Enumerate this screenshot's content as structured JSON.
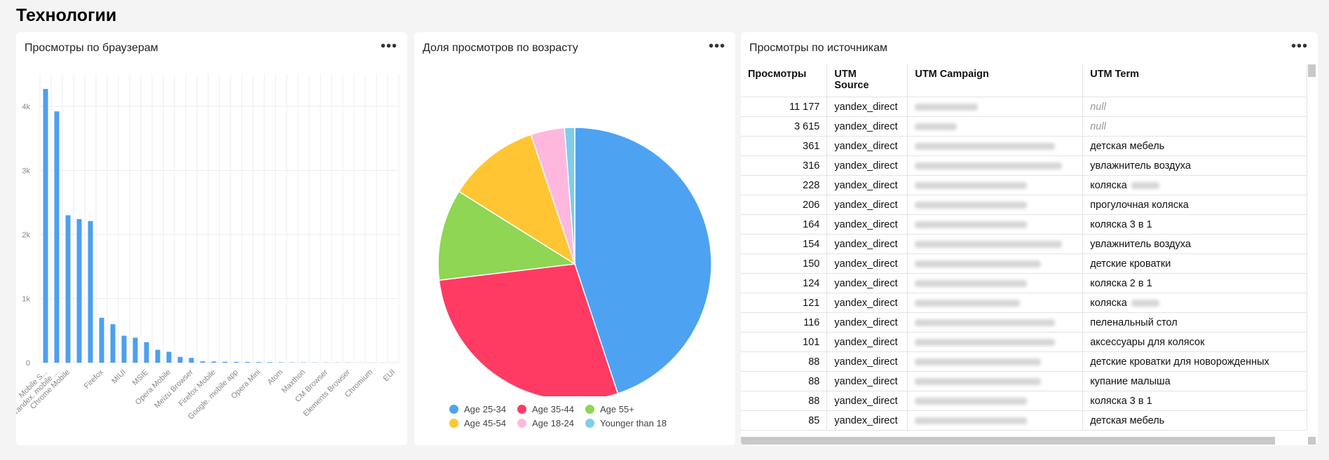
{
  "page": {
    "title": "Технологии"
  },
  "colors": {
    "bar": "#4da0f0",
    "grid": "#ececec"
  },
  "browsers": {
    "title": "Просмотры по браузерам",
    "menu": "•••",
    "chart_data": {
      "type": "bar",
      "categories": [
        "Mobile S...",
        "Yandex. mobile ...",
        "Chrome Mobile",
        "",
        "",
        "Firefox",
        "",
        "MIUI",
        "",
        "MSIE",
        "",
        "Opera Mobile",
        "",
        "Meizu Browser",
        "",
        "Firefox Mobile",
        "",
        "Google. mobile app",
        "",
        "Opera Mini",
        "",
        "Atom",
        "",
        "Maxthon",
        "",
        "CM Browser",
        "",
        "Elements Browser",
        "",
        "Chromium",
        "",
        "EUI"
      ],
      "values": [
        4270,
        3920,
        2300,
        2240,
        2210,
        700,
        600,
        420,
        390,
        320,
        200,
        170,
        90,
        75,
        20,
        18,
        15,
        13,
        12,
        10,
        8,
        6,
        5,
        4,
        3,
        3,
        2,
        2,
        1,
        1,
        1,
        1
      ],
      "ylim": [
        0,
        4500
      ],
      "yticks": [
        0,
        1000,
        2000,
        3000,
        4000
      ],
      "ytick_labels": [
        "0",
        "1k",
        "2k",
        "3k",
        "4k"
      ],
      "grid": true
    }
  },
  "age": {
    "title": "Доля просмотров по возрасту",
    "menu": "•••",
    "chart_data": {
      "type": "pie",
      "slices": [
        {
          "label": "Age 25-34",
          "value": 44.9,
          "color": "#4da3f2"
        },
        {
          "label": "Age 35-44",
          "value": 28.2,
          "color": "#ff3b63"
        },
        {
          "label": "Age 55+",
          "value": 10.8,
          "color": "#8ed654"
        },
        {
          "label": "Age 45-54",
          "value": 10.9,
          "color": "#ffc533"
        },
        {
          "label": "Age 18-24",
          "value": 4.0,
          "color": "#ffb8dd"
        },
        {
          "label": "Younger than 18",
          "value": 1.2,
          "color": "#7fcde8"
        }
      ]
    },
    "legend_rows": [
      [
        "Age 25-34",
        "Age 35-44",
        "Age 55+"
      ],
      [
        "Age 45-54",
        "Age 18-24",
        "Younger than 18"
      ]
    ]
  },
  "sources": {
    "title": "Просмотры по источникам",
    "menu": "•••",
    "columns": [
      "Просмотры",
      "UTM\nSource",
      "UTM Campaign",
      "UTM Term"
    ],
    "rows": [
      {
        "views": "11 177",
        "source": "yandex_direct",
        "term": "null",
        "term_null": true
      },
      {
        "views": "3 615",
        "source": "yandex_direct",
        "term": "null",
        "term_null": true
      },
      {
        "views": "361",
        "source": "yandex_direct",
        "term": "детская мебель"
      },
      {
        "views": "316",
        "source": "yandex_direct",
        "term": "увлажнитель воздуха"
      },
      {
        "views": "228",
        "source": "yandex_direct",
        "term": "коляска",
        "term_blur": true
      },
      {
        "views": "206",
        "source": "yandex_direct",
        "term": "прогулочная коляска"
      },
      {
        "views": "164",
        "source": "yandex_direct",
        "term": "коляска 3 в 1"
      },
      {
        "views": "154",
        "source": "yandex_direct",
        "term": "увлажнитель воздуха"
      },
      {
        "views": "150",
        "source": "yandex_direct",
        "term": "детские кроватки"
      },
      {
        "views": "124",
        "source": "yandex_direct",
        "term": "коляска 2 в 1"
      },
      {
        "views": "121",
        "source": "yandex_direct",
        "term": "коляска",
        "term_blur": true
      },
      {
        "views": "116",
        "source": "yandex_direct",
        "term": "пеленальный стол"
      },
      {
        "views": "101",
        "source": "yandex_direct",
        "term": "аксессуары для колясок"
      },
      {
        "views": "88",
        "source": "yandex_direct",
        "term": "детские кроватки для новорожденных"
      },
      {
        "views": "88",
        "source": "yandex_direct",
        "term": "купание малыша"
      },
      {
        "views": "88",
        "source": "yandex_direct",
        "term": "коляска 3 в 1"
      },
      {
        "views": "85",
        "source": "yandex_direct",
        "term": "детская мебель"
      }
    ]
  }
}
